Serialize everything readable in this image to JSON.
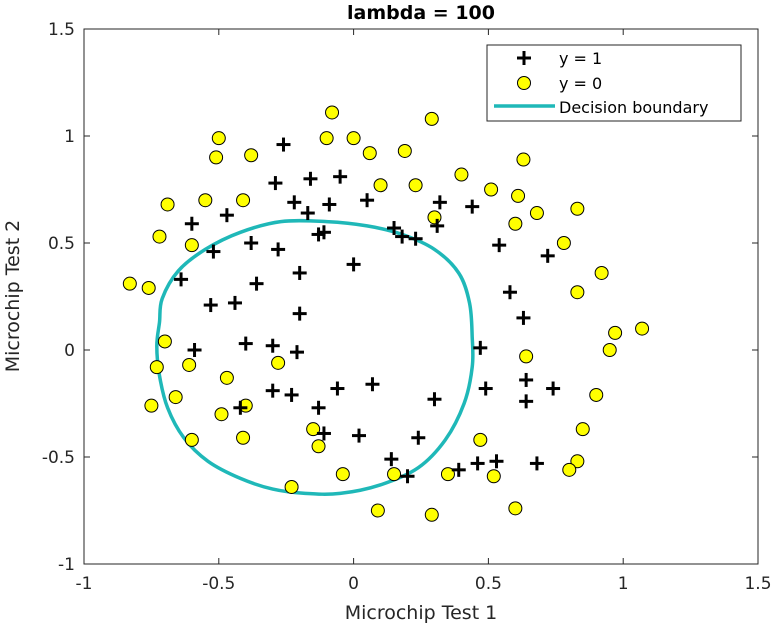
{
  "chart_data": {
    "type": "scatter",
    "title": "lambda = 100",
    "xlabel": "Microchip Test 1",
    "ylabel": "Microchip Test 2",
    "xlim": [
      -1,
      1.5
    ],
    "ylim": [
      -1,
      1.5
    ],
    "xticks": [
      -1,
      -0.5,
      0,
      0.5,
      1,
      1.5
    ],
    "yticks": [
      -1,
      -0.5,
      0,
      0.5,
      1,
      1.5
    ],
    "xtick_labels": [
      "-1",
      "-0.5",
      "0",
      "0.5",
      "1",
      "1.5"
    ],
    "ytick_labels": [
      "-1",
      "-0.5",
      "0",
      "0.5",
      "1",
      "1.5"
    ],
    "legend_position": "top-right",
    "grid": false,
    "colors": {
      "positive": "#000000",
      "negative_fill": "#ffff00",
      "negative_edge": "#000000",
      "boundary": "#1fb8b8"
    },
    "series": [
      {
        "name": "y = 1",
        "marker": "plus",
        "points": [
          [
            -0.26,
            0.96
          ],
          [
            -0.29,
            0.78
          ],
          [
            -0.16,
            0.8
          ],
          [
            -0.22,
            0.69
          ],
          [
            -0.17,
            0.64
          ],
          [
            -0.05,
            0.81
          ],
          [
            -0.09,
            0.68
          ],
          [
            0.05,
            0.7
          ],
          [
            -0.11,
            0.55
          ],
          [
            -0.13,
            0.54
          ],
          [
            -0.47,
            0.63
          ],
          [
            -0.6,
            0.59
          ],
          [
            -0.52,
            0.46
          ],
          [
            -0.38,
            0.5
          ],
          [
            -0.28,
            0.47
          ],
          [
            -0.2,
            0.36
          ],
          [
            0.0,
            0.4
          ],
          [
            -0.64,
            0.33
          ],
          [
            -0.36,
            0.31
          ],
          [
            -0.53,
            0.21
          ],
          [
            -0.44,
            0.22
          ],
          [
            -0.2,
            0.17
          ],
          [
            -0.4,
            0.03
          ],
          [
            -0.3,
            0.02
          ],
          [
            -0.59,
            0.0
          ],
          [
            -0.21,
            -0.01
          ],
          [
            -0.3,
            -0.19
          ],
          [
            -0.23,
            -0.21
          ],
          [
            -0.06,
            -0.18
          ],
          [
            0.07,
            -0.16
          ],
          [
            -0.42,
            -0.27
          ],
          [
            -0.13,
            -0.27
          ],
          [
            0.3,
            -0.23
          ],
          [
            -0.11,
            -0.39
          ],
          [
            0.02,
            -0.4
          ],
          [
            0.24,
            -0.41
          ],
          [
            0.14,
            -0.51
          ],
          [
            0.2,
            -0.59
          ],
          [
            0.39,
            -0.56
          ],
          [
            0.46,
            -0.53
          ],
          [
            0.53,
            -0.52
          ],
          [
            0.68,
            -0.53
          ],
          [
            0.49,
            -0.18
          ],
          [
            0.64,
            -0.24
          ],
          [
            0.64,
            -0.14
          ],
          [
            0.74,
            -0.18
          ],
          [
            0.47,
            0.01
          ],
          [
            0.63,
            0.15
          ],
          [
            0.58,
            0.27
          ],
          [
            0.72,
            0.44
          ],
          [
            0.54,
            0.49
          ],
          [
            0.44,
            0.67
          ],
          [
            0.32,
            0.69
          ],
          [
            0.31,
            0.58
          ],
          [
            0.15,
            0.57
          ],
          [
            0.18,
            0.53
          ],
          [
            0.23,
            0.52
          ]
        ]
      },
      {
        "name": "y = 0",
        "marker": "circle",
        "points": [
          [
            -0.08,
            1.11
          ],
          [
            0.29,
            1.08
          ],
          [
            -0.5,
            0.99
          ],
          [
            -0.1,
            0.99
          ],
          [
            0.0,
            0.99
          ],
          [
            -0.51,
            0.9
          ],
          [
            -0.38,
            0.91
          ],
          [
            0.06,
            0.92
          ],
          [
            0.19,
            0.93
          ],
          [
            -0.69,
            0.68
          ],
          [
            -0.55,
            0.7
          ],
          [
            -0.41,
            0.7
          ],
          [
            0.1,
            0.77
          ],
          [
            0.23,
            0.77
          ],
          [
            0.4,
            0.82
          ],
          [
            0.51,
            0.75
          ],
          [
            0.63,
            0.89
          ],
          [
            0.61,
            0.72
          ],
          [
            0.68,
            0.64
          ],
          [
            0.83,
            0.66
          ],
          [
            0.6,
            0.59
          ],
          [
            0.78,
            0.5
          ],
          [
            0.3,
            0.62
          ],
          [
            -0.72,
            0.53
          ],
          [
            -0.6,
            0.49
          ],
          [
            -0.83,
            0.31
          ],
          [
            -0.76,
            0.29
          ],
          [
            0.92,
            0.36
          ],
          [
            0.83,
            0.27
          ],
          [
            1.07,
            0.1
          ],
          [
            0.97,
            0.08
          ],
          [
            0.95,
            0.0
          ],
          [
            -0.7,
            0.04
          ],
          [
            -0.61,
            -0.07
          ],
          [
            -0.73,
            -0.08
          ],
          [
            -0.47,
            -0.13
          ],
          [
            0.64,
            -0.03
          ],
          [
            0.9,
            -0.21
          ],
          [
            -0.75,
            -0.26
          ],
          [
            -0.66,
            -0.22
          ],
          [
            -0.49,
            -0.3
          ],
          [
            -0.4,
            -0.26
          ],
          [
            -0.6,
            -0.42
          ],
          [
            -0.41,
            -0.41
          ],
          [
            -0.28,
            -0.06
          ],
          [
            0.85,
            -0.37
          ],
          [
            0.47,
            -0.42
          ],
          [
            -0.15,
            -0.37
          ],
          [
            -0.13,
            -0.45
          ],
          [
            0.83,
            -0.52
          ],
          [
            0.8,
            -0.56
          ],
          [
            0.35,
            -0.58
          ],
          [
            0.52,
            -0.59
          ],
          [
            0.15,
            -0.58
          ],
          [
            -0.04,
            -0.58
          ],
          [
            -0.23,
            -0.64
          ],
          [
            0.09,
            -0.75
          ],
          [
            0.29,
            -0.77
          ],
          [
            0.6,
            -0.74
          ]
        ]
      },
      {
        "name": "Decision boundary",
        "marker": "line",
        "curve": [
          [
            -0.72,
            0.13
          ],
          [
            -0.71,
            0.24
          ],
          [
            -0.65,
            0.37
          ],
          [
            -0.55,
            0.47
          ],
          [
            -0.42,
            0.55
          ],
          [
            -0.27,
            0.6
          ],
          [
            -0.1,
            0.6
          ],
          [
            0.05,
            0.58
          ],
          [
            0.18,
            0.54
          ],
          [
            0.3,
            0.47
          ],
          [
            0.39,
            0.36
          ],
          [
            0.43,
            0.22
          ],
          [
            0.44,
            0.06
          ],
          [
            0.44,
            -0.08
          ],
          [
            0.41,
            -0.25
          ],
          [
            0.34,
            -0.42
          ],
          [
            0.24,
            -0.55
          ],
          [
            0.1,
            -0.63
          ],
          [
            -0.05,
            -0.67
          ],
          [
            -0.18,
            -0.67
          ],
          [
            -0.3,
            -0.65
          ],
          [
            -0.42,
            -0.6
          ],
          [
            -0.54,
            -0.52
          ],
          [
            -0.63,
            -0.41
          ],
          [
            -0.69,
            -0.27
          ],
          [
            -0.72,
            -0.12
          ],
          [
            -0.73,
            0.02
          ]
        ]
      }
    ]
  }
}
